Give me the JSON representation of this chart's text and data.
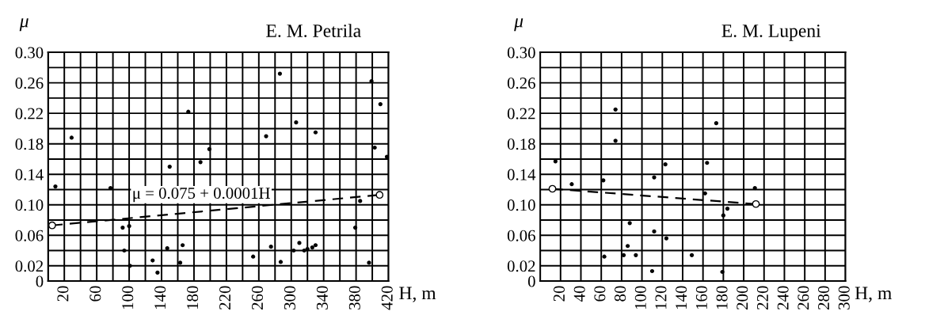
{
  "chart_data": [
    {
      "type": "scatter",
      "title": "E. M. Petrila",
      "xlabel": "H, m",
      "ylabel": "μ",
      "xlim": [
        0,
        420
      ],
      "xticks": [
        {
          "value": 0,
          "label": null
        },
        20,
        {
          "value": 40,
          "label": null
        },
        60,
        {
          "value": 80,
          "label": null
        },
        100,
        {
          "value": 120,
          "label": null
        },
        140,
        {
          "value": 160,
          "label": null
        },
        180,
        {
          "value": 200,
          "label": null
        },
        220,
        {
          "value": 240,
          "label": null
        },
        260,
        {
          "value": 280,
          "label": null
        },
        300,
        {
          "value": 320,
          "label": null
        },
        340,
        {
          "value": 360,
          "label": null
        },
        380,
        {
          "value": 400,
          "label": null
        },
        420
      ],
      "ylim": [
        0,
        0.3
      ],
      "yticks": [
        0,
        0.02,
        {
          "value": 0.04,
          "label": null
        },
        0.06,
        {
          "value": 0.08,
          "label": null
        },
        {
          "value": 0.1,
          "label": "0.10"
        },
        {
          "value": 0.12,
          "label": null
        },
        0.14,
        {
          "value": 0.16,
          "label": null
        },
        0.18,
        {
          "value": 0.2,
          "label": null
        },
        0.22,
        {
          "value": 0.24,
          "label": null
        },
        0.26,
        {
          "value": 0.28,
          "label": null
        },
        {
          "value": 0.3,
          "label": "0.30"
        }
      ],
      "grid": true,
      "annotations": [
        "μ = 0.075 + 0.0001H"
      ],
      "series": [
        {
          "color": "#000000",
          "marker": "circle",
          "x": [
            9,
            29,
            77,
            150,
            173,
            188,
            199,
            92,
            100,
            94,
            101,
            129,
            135,
            147,
            163,
            166,
            286,
            399,
            410,
            306,
            330,
            269,
            403,
            418,
            385,
            379,
            275,
            310,
            253,
            287,
            303,
            316,
            320,
            326,
            330,
            396
          ],
          "values": [
            0.124,
            0.188,
            0.122,
            0.15,
            0.222,
            0.156,
            0.173,
            0.07,
            0.072,
            0.04,
            0.02,
            0.027,
            0.011,
            0.043,
            0.024,
            0.047,
            0.272,
            0.262,
            0.232,
            0.208,
            0.195,
            0.19,
            0.175,
            0.163,
            0.105,
            0.07,
            0.045,
            0.05,
            0.032,
            0.025,
            0.04,
            0.04,
            0.042,
            0.044,
            0.047,
            0.024
          ]
        },
        {
          "type": "line",
          "color": "#000000",
          "marker": "circle",
          "line_style": "dashed",
          "x": [
            5,
            409
          ],
          "values": [
            0.073,
            0.113
          ]
        }
      ]
    },
    {
      "type": "scatter",
      "title": "E. M. Lupeni",
      "xlabel": "H, m",
      "ylabel": "μ",
      "xlim": [
        0,
        300
      ],
      "xticks": [
        {
          "value": 0,
          "label": null
        },
        20,
        40,
        60,
        80,
        100,
        120,
        140,
        160,
        180,
        200,
        220,
        240,
        260,
        280,
        300
      ],
      "ylim": [
        0,
        0.3
      ],
      "yticks": [
        0,
        0.02,
        {
          "value": 0.04,
          "label": null
        },
        0.06,
        {
          "value": 0.08,
          "label": null
        },
        {
          "value": 0.1,
          "label": "0.10"
        },
        {
          "value": 0.12,
          "label": null
        },
        0.14,
        {
          "value": 0.16,
          "label": null
        },
        0.18,
        {
          "value": 0.2,
          "label": null
        },
        0.22,
        {
          "value": 0.24,
          "label": null
        },
        0.26,
        {
          "value": 0.28,
          "label": null
        },
        {
          "value": 0.3,
          "label": "0.30"
        }
      ],
      "grid": true,
      "series": [
        {
          "color": "#000000",
          "marker": "circle",
          "x": [
            15,
            31,
            62,
            74,
            74,
            88,
            63,
            82,
            86,
            94,
            112,
            112,
            110,
            123,
            124,
            149,
            173,
            164,
            162,
            184,
            180,
            179,
            211
          ],
          "values": [
            0.157,
            0.127,
            0.132,
            0.225,
            0.184,
            0.076,
            0.032,
            0.034,
            0.046,
            0.034,
            0.136,
            0.065,
            0.013,
            0.153,
            0.056,
            0.034,
            0.207,
            0.155,
            0.115,
            0.095,
            0.086,
            0.012,
            0.122
          ]
        },
        {
          "type": "line",
          "color": "#000000",
          "marker": "circle",
          "line_style": "dashed",
          "x": [
            12,
            212
          ],
          "values": [
            0.121,
            0.101
          ]
        }
      ]
    }
  ]
}
